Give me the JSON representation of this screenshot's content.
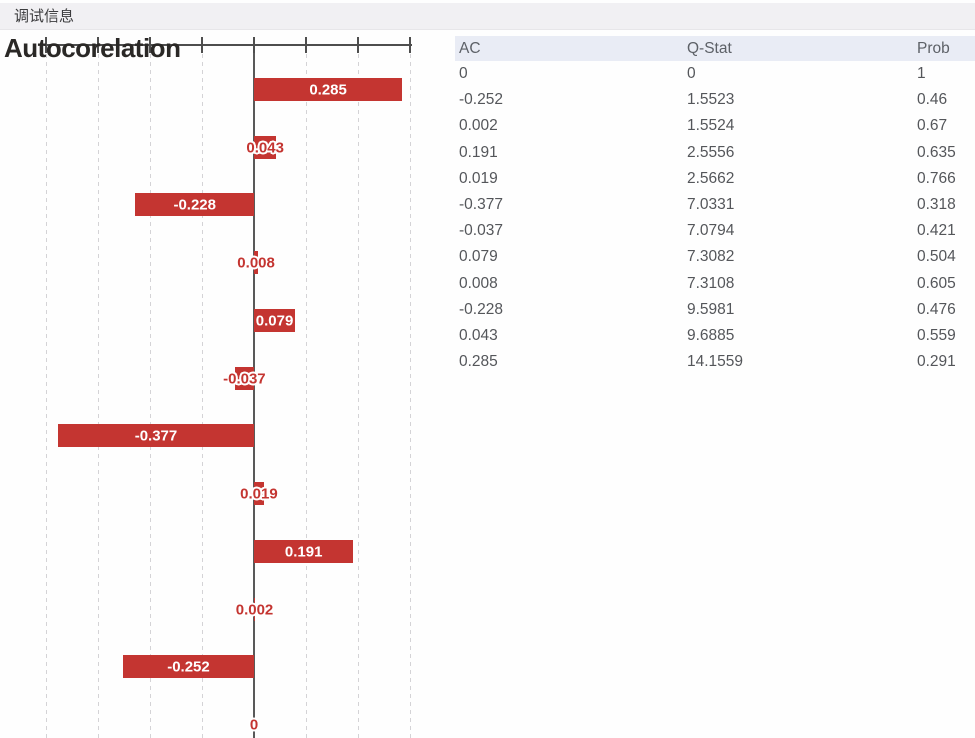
{
  "window": {
    "title": "调试信息"
  },
  "chart_data": {
    "type": "bar",
    "orientation": "horizontal",
    "title": "Autocorelation",
    "bars_top_to_bottom": [
      {
        "label": "0.285",
        "value": 0.285
      },
      {
        "label": "0.043",
        "value": 0.043
      },
      {
        "label": "-0.228",
        "value": -0.228
      },
      {
        "label": "0.008",
        "value": 0.008
      },
      {
        "label": "0.079",
        "value": 0.079
      },
      {
        "label": "-0.037",
        "value": -0.037
      },
      {
        "label": "-0.377",
        "value": -0.377
      },
      {
        "label": "0.019",
        "value": 0.019
      },
      {
        "label": "0.191",
        "value": 0.191
      },
      {
        "label": "0.002",
        "value": 0.002
      },
      {
        "label": "-0.252",
        "value": -0.252
      },
      {
        "label": "0",
        "value": 0
      }
    ],
    "x_ticks": [
      -0.4,
      -0.3,
      -0.2,
      -0.1,
      0,
      0.1,
      0.2,
      0.3
    ],
    "xlim": [
      -0.4,
      0.3
    ],
    "grid": true,
    "legend": "none",
    "bar_color": "#c43531"
  },
  "table": {
    "columns": [
      "AC",
      "Q-Stat",
      "Prob"
    ],
    "rows": [
      [
        "0",
        "0",
        "1"
      ],
      [
        "-0.252",
        "1.5523",
        "0.46"
      ],
      [
        "0.002",
        "1.5524",
        "0.67"
      ],
      [
        "0.191",
        "2.5556",
        "0.635"
      ],
      [
        "0.019",
        "2.5662",
        "0.766"
      ],
      [
        "-0.377",
        "7.0331",
        "0.318"
      ],
      [
        "-0.037",
        "7.0794",
        "0.421"
      ],
      [
        "0.079",
        "7.3082",
        "0.504"
      ],
      [
        "0.008",
        "7.3108",
        "0.605"
      ],
      [
        "-0.228",
        "9.5981",
        "0.476"
      ],
      [
        "0.043",
        "9.6885",
        "0.559"
      ],
      [
        "0.285",
        "14.1559",
        "0.291"
      ]
    ]
  },
  "colors": {
    "bar_red": "#c43531",
    "axis": "#4e4e4e",
    "center_axis": "#595959",
    "gridline": "#d4d3d6",
    "header_bg": "#e9ecf5",
    "header_text": "#5d6167",
    "cell_text": "#54565a",
    "strip_bg": "#f1f0f3",
    "strip_text": "#3c3c3e",
    "title_text": "#2a2826"
  }
}
